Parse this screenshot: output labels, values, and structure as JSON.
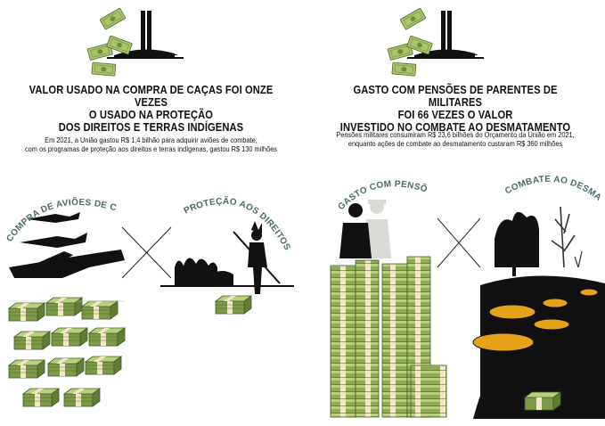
{
  "left": {
    "title_lines": [
      "VALOR USADO NA COMPRA DE CAÇAS FOI ONZE VEZES",
      "O USADO NA PROTEÇÃO",
      "DOS DIREITOS E TERRAS INDÍGENAS"
    ],
    "subtitle_lines": [
      "Em 2021, a União gastou R$ 1,4 bilhão para adquirir aviões de combate;",
      "com os programas de proteção aos direitos e terras indígenas, gastou R$ 130 milhões"
    ],
    "label_a": "COMPRA DE AVIÕES DE CAÇA MILITARES",
    "label_b": "PROTEÇÃO AOS DIREITOS E TERRAS INDÍGENAS",
    "big_stack_count": 11,
    "small_stack_count": 1
  },
  "right": {
    "title_lines": [
      "GASTO COM PENSÕES DE PARENTES DE MILITARES",
      "FOI 66 VEZES O VALOR",
      "INVESTIDO NO COMBATE AO DESMATAMENTO"
    ],
    "subtitle_lines": [
      "Pensões militares consumiram R$ 23,6 bilhões do Orçamento da União em 2021,",
      "enquanto ações de combate ao desmatamento custaram R$ 360 milhões"
    ],
    "label_a": "GASTO COM PENSÕES MILITARES",
    "label_b": "COMBATE AO DESMATAMENTO"
  },
  "colors": {
    "money_green": "#a9c46a",
    "money_dark": "#5f7d33",
    "band": "#f2e7c9",
    "label_teal": "#4a6a6a",
    "stump_orange": "#e8a21a"
  }
}
